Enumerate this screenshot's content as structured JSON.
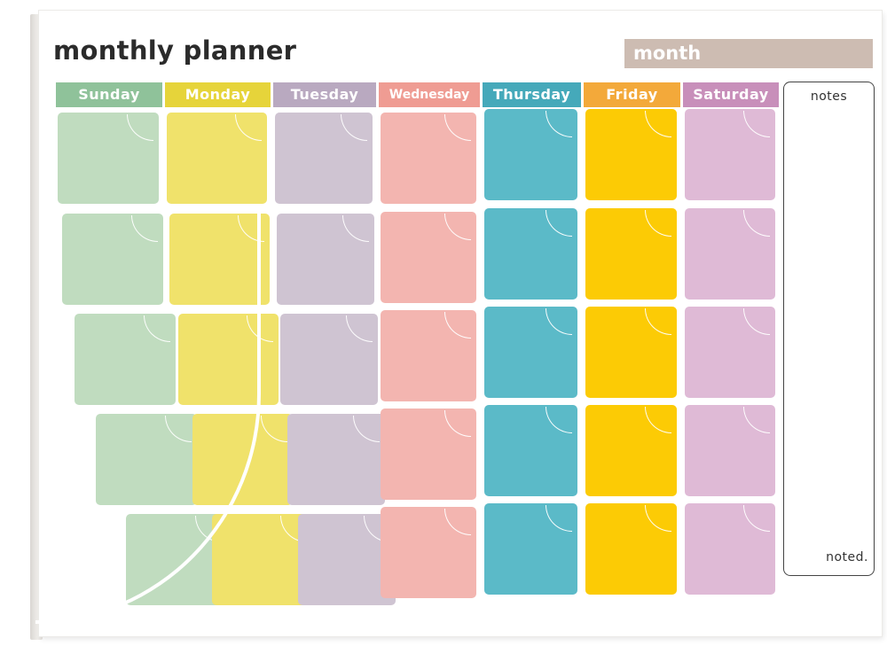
{
  "title": "monthly planner",
  "month_label": "month",
  "days": [
    {
      "label": "Sunday",
      "color": "#8fc29a",
      "cell": "#c0dcbf"
    },
    {
      "label": "Monday",
      "color": "#e6d43a",
      "cell": "#f0e26b"
    },
    {
      "label": "Tuesday",
      "color": "#b9a9c0",
      "cell": "#cfc4d2"
    },
    {
      "label": "Wednesday",
      "color": "#ef9c93",
      "cell": "#f3b5b0"
    },
    {
      "label": "Thursday",
      "color": "#45a9ba",
      "cell": "#5bbac8"
    },
    {
      "label": "Friday",
      "color": "#f3a93a",
      "cell": "#fccb05"
    },
    {
      "label": "Saturday",
      "color": "#c88fba",
      "cell": "#dfbad6"
    }
  ],
  "notes": {
    "heading": "notes",
    "footer": "noted."
  }
}
